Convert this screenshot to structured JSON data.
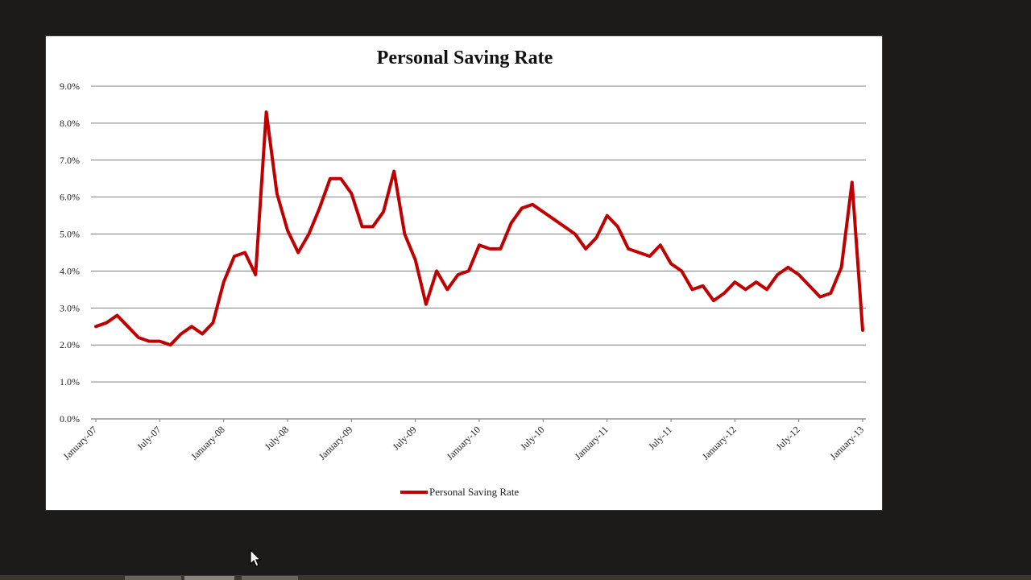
{
  "chart_data": {
    "type": "line",
    "title": "Personal Saving Rate",
    "xlabel": "",
    "ylabel": "",
    "ylim": [
      0,
      9
    ],
    "yticks": [
      "0.0%",
      "1.0%",
      "2.0%",
      "3.0%",
      "4.0%",
      "5.0%",
      "6.0%",
      "7.0%",
      "8.0%",
      "9.0%"
    ],
    "xtick_labels": [
      "January-07",
      "July-07",
      "January-08",
      "July-08",
      "January-09",
      "July-09",
      "January-10",
      "July-10",
      "January-11",
      "July-11",
      "January-12",
      "July-12",
      "January-13"
    ],
    "grid": "horizontal",
    "legend_position": "bottom",
    "series": [
      {
        "name": "Personal Saving Rate",
        "color": "#c00000",
        "start": "January-07",
        "frequency": "monthly",
        "values": [
          2.5,
          2.6,
          2.8,
          2.5,
          2.2,
          2.1,
          2.1,
          2.0,
          2.3,
          2.5,
          2.3,
          2.6,
          3.7,
          4.4,
          4.5,
          3.9,
          8.3,
          6.1,
          5.1,
          4.5,
          5.0,
          5.7,
          6.5,
          6.5,
          6.1,
          5.2,
          5.2,
          5.6,
          6.7,
          5.0,
          4.3,
          3.1,
          4.0,
          3.5,
          3.9,
          4.0,
          4.7,
          4.6,
          4.6,
          5.3,
          5.7,
          5.8,
          5.6,
          5.4,
          5.2,
          5.0,
          4.6,
          4.9,
          5.5,
          5.2,
          4.6,
          4.5,
          4.4,
          4.7,
          4.2,
          4.0,
          3.5,
          3.6,
          3.2,
          3.4,
          3.7,
          3.5,
          3.7,
          3.5,
          3.9,
          4.1,
          3.9,
          3.6,
          3.3,
          3.4,
          4.1,
          6.4,
          2.4
        ]
      }
    ]
  },
  "colors": {
    "background": "#1c1b1a",
    "panel": "#ffffff",
    "gridline": "#7f7f7f",
    "line": "#c00000"
  }
}
